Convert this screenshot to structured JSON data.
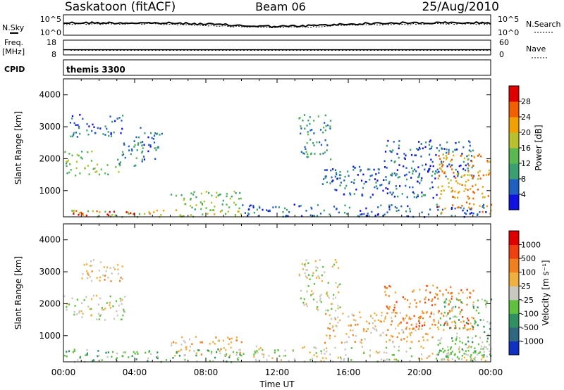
{
  "header": {
    "station": "Saskatoon (fitACF)",
    "beam": "Beam 06",
    "date": "25/Aug/2010"
  },
  "side_labels": {
    "nsky": "N.Sky",
    "nsearch": "N.Search",
    "freq_line1": "Freq.",
    "freq_line2": "[MHz]",
    "nave": "Nave",
    "cpid": "CPID",
    "cpid_value": "themis 3300"
  },
  "chart_data": [
    {
      "type": "line",
      "panel": "noise",
      "series": [
        {
          "name": "N.Sky"
        },
        {
          "name": "N.Search"
        }
      ],
      "left_ticks": [
        "10^5",
        "10^0"
      ],
      "right_ticks": [
        "10^5",
        "10^0"
      ]
    },
    {
      "type": "scatter",
      "panel": "frequency",
      "series": [
        {
          "name": "Freq."
        },
        {
          "name": "Nave"
        }
      ],
      "left_ticks": [
        18,
        8
      ],
      "right_ticks": [
        60,
        0
      ],
      "freq_value": 11.5,
      "nave_value": 20
    },
    {
      "type": "heatmap",
      "panel": "power",
      "ylabel": "Slant Range [km]",
      "ylim": [
        180,
        4500
      ],
      "y_ticks": [
        1000,
        2000,
        3000,
        4000
      ],
      "colorbar": {
        "label": "Power [dB]",
        "ticks": [
          4,
          8,
          12,
          16,
          20,
          24,
          28
        ],
        "colors": [
          "#1010e0",
          "#2060c0",
          "#3aa070",
          "#5ab850",
          "#b8c030",
          "#f0a000",
          "#f06000",
          "#e00000"
        ]
      },
      "regions": [
        {
          "t": [
            0.0,
            10.0
          ],
          "r": [
            200,
            420
          ],
          "level": 4
        },
        {
          "t": [
            0.5,
            5.0
          ],
          "r": [
            250,
            400
          ],
          "level": 7
        },
        {
          "t": [
            6.0,
            10.0
          ],
          "r": [
            400,
            1000
          ],
          "level": 3
        },
        {
          "t": [
            10.0,
            24.0
          ],
          "r": [
            200,
            600
          ],
          "level": 1
        },
        {
          "t": [
            0.0,
            1.6
          ],
          "r": [
            1500,
            2300
          ],
          "level": 3
        },
        {
          "t": [
            1.6,
            3.2
          ],
          "r": [
            1500,
            1900
          ],
          "level": 3
        },
        {
          "t": [
            3.0,
            4.5
          ],
          "r": [
            1800,
            2600
          ],
          "level": 2
        },
        {
          "t": [
            0.3,
            3.3
          ],
          "r": [
            2700,
            3400
          ],
          "level": 1
        },
        {
          "t": [
            4.0,
            5.5
          ],
          "r": [
            2000,
            3000
          ],
          "level": 1
        },
        {
          "t": [
            13.2,
            15.0
          ],
          "r": [
            2000,
            3400
          ],
          "level": 2
        },
        {
          "t": [
            14.5,
            21.0
          ],
          "r": [
            800,
            1800
          ],
          "level": 1
        },
        {
          "t": [
            18.0,
            23.0
          ],
          "r": [
            1400,
            2600
          ],
          "level": 1
        },
        {
          "t": [
            21.0,
            24.0
          ],
          "r": [
            300,
            2200
          ],
          "level": 5
        }
      ]
    },
    {
      "type": "heatmap",
      "panel": "velocity",
      "xlabel": "Time UT",
      "ylabel": "Slant Range [km]",
      "ylim": [
        180,
        4500
      ],
      "y_ticks": [
        1000,
        2000,
        3000,
        4000
      ],
      "x_ticks": [
        "00:00",
        "04:00",
        "08:00",
        "12:00",
        "16:00",
        "20:00",
        "00:00"
      ],
      "xlim": [
        0,
        24
      ],
      "colorbar": {
        "label": "Velocity [m s⁻¹]",
        "ticks": [
          1000,
          500,
          100,
          25,
          -25,
          -100,
          -500,
          -1000
        ],
        "colors": [
          "#1030c0",
          "#306880",
          "#309060",
          "#60c040",
          "#c8c8c0",
          "#f0b040",
          "#f08020",
          "#f04010",
          "#e00000"
        ]
      },
      "regions": [
        {
          "t": [
            0.0,
            10.0
          ],
          "r": [
            200,
            600
          ],
          "level": 3
        },
        {
          "t": [
            10.0,
            24.0
          ],
          "r": [
            200,
            700
          ],
          "level": 4
        },
        {
          "t": [
            0.0,
            3.5
          ],
          "r": [
            1500,
            2300
          ],
          "level": 4
        },
        {
          "t": [
            1.0,
            3.5
          ],
          "r": [
            2700,
            3400
          ],
          "level": 5
        },
        {
          "t": [
            6.0,
            10.0
          ],
          "r": [
            400,
            1000
          ],
          "level": 5
        },
        {
          "t": [
            13.2,
            15.5
          ],
          "r": [
            1800,
            3400
          ],
          "level": 4
        },
        {
          "t": [
            14.5,
            21.0
          ],
          "r": [
            800,
            1800
          ],
          "level": 5
        },
        {
          "t": [
            18.0,
            23.0
          ],
          "r": [
            1200,
            2600
          ],
          "level": 6
        },
        {
          "t": [
            21.0,
            24.0
          ],
          "r": [
            300,
            2200
          ],
          "level": 3
        }
      ]
    }
  ]
}
